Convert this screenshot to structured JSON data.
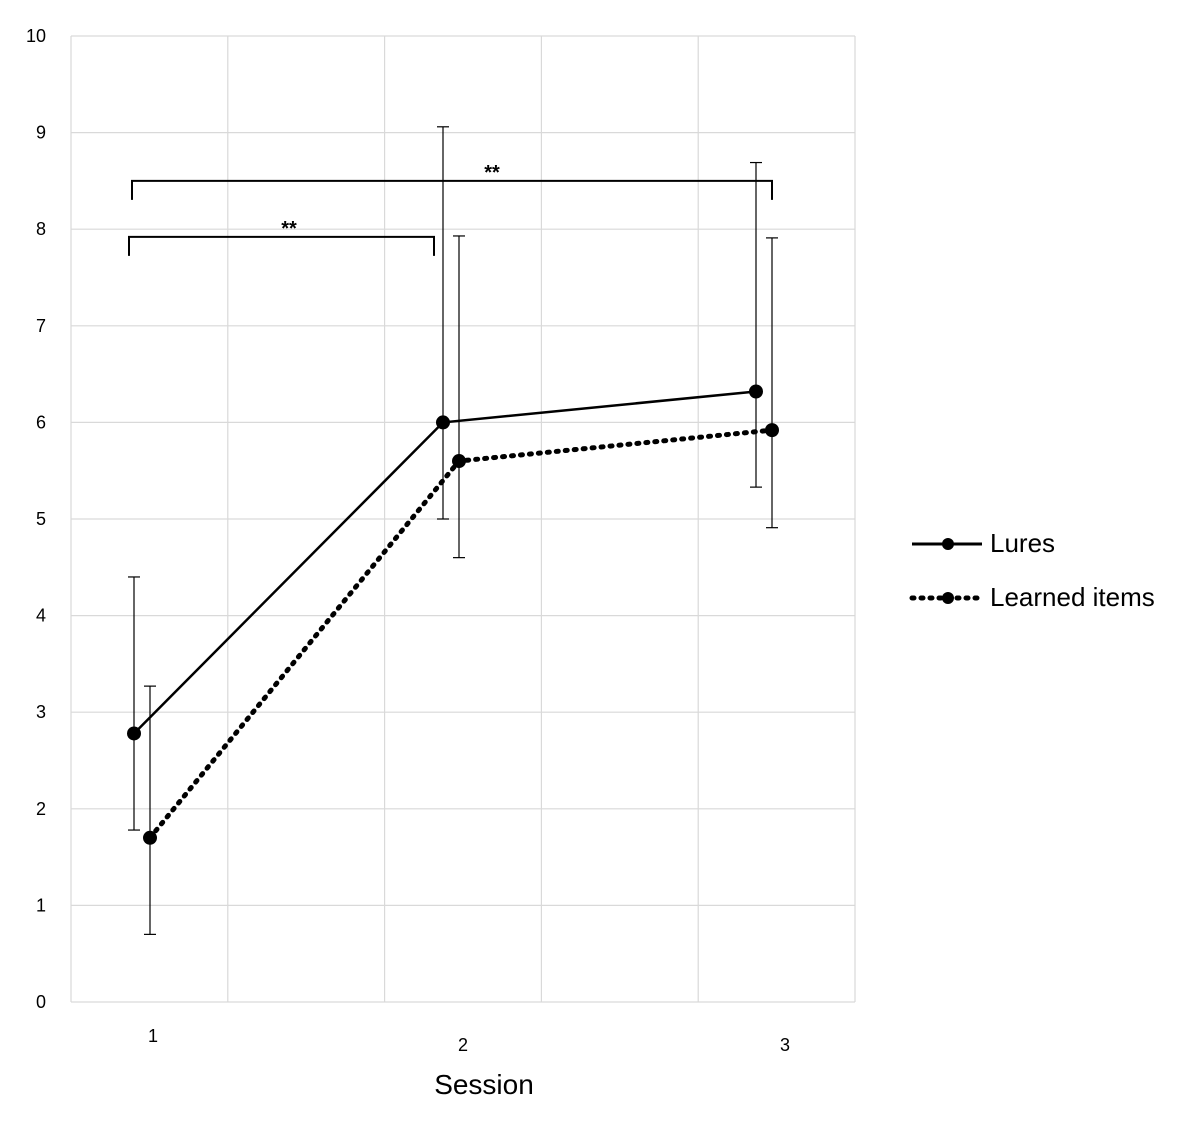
{
  "chart_data": {
    "type": "line",
    "title": "",
    "xlabel": "Session",
    "ylabel": "",
    "categories": [
      "1",
      "2",
      "3"
    ],
    "ylim": [
      0,
      10
    ],
    "yticks": [
      "0",
      "1",
      "2",
      "3",
      "4",
      "5",
      "6",
      "7",
      "8",
      "9",
      "10"
    ],
    "grid": true,
    "legend_position": "right",
    "series": [
      {
        "name": "Lures",
        "style": "solid",
        "values": [
          2.78,
          6.0,
          6.32
        ],
        "error_low": [
          1.78,
          5.0,
          5.33
        ],
        "error_high": [
          4.4,
          9.06,
          8.69
        ]
      },
      {
        "name": "Learned items",
        "style": "dotted",
        "values": [
          1.7,
          5.6,
          5.92
        ],
        "error_low": [
          0.7,
          4.6,
          4.91
        ],
        "error_high": [
          3.27,
          7.93,
          7.91
        ]
      }
    ],
    "annotations": [
      {
        "label": "**",
        "from": "1",
        "to": "2",
        "level": 7.92
      },
      {
        "label": "**",
        "from": "1",
        "to": "3",
        "level": 8.5
      }
    ]
  },
  "colors": {
    "line": "#000000",
    "grid": "#d9d9d9"
  }
}
